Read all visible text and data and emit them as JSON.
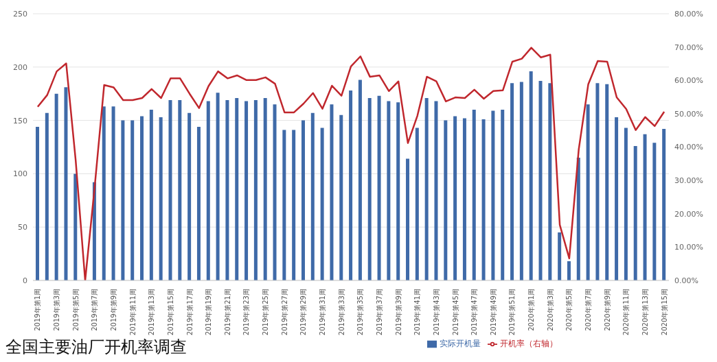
{
  "chart_data": {
    "type": "bar",
    "title": "全国主要油厂开机率调查",
    "categories": [
      "2019年第1周",
      null,
      "2019年第3周",
      null,
      "2019年第5周",
      null,
      "2019年第7周",
      null,
      "2019年第9周",
      null,
      "2019年第11周",
      null,
      "2019年第13周",
      null,
      "2019年第15周",
      null,
      "2019年第17周",
      null,
      "2019年第19周",
      null,
      "2019年第21周",
      null,
      "2019年第23周",
      null,
      "2019年第25周",
      null,
      "2019年第27周",
      null,
      "2019年第29周",
      null,
      "2019年第31周",
      null,
      "2019年第33周",
      null,
      "2019年第35周",
      null,
      "2019年第37周",
      null,
      "2019年第39周",
      null,
      "2019年第41周",
      null,
      "2019年第43周",
      null,
      "2019年第45周",
      null,
      "2019年第47周",
      null,
      "2019年第49周",
      null,
      "2019年第51周",
      null,
      "2020年第1周",
      null,
      "2020年第3周",
      null,
      "2020年第5周",
      null,
      "2020年第7周",
      null,
      "2020年第9周",
      null,
      "2020年第11周",
      null,
      "2020年第13周",
      null,
      "2020年第15周"
    ],
    "series": [
      {
        "name": "实际开机量",
        "color": "#3f6aa8",
        "values": [
          144,
          157,
          175,
          181,
          100,
          0,
          92,
          163,
          163,
          150,
          150,
          154,
          160,
          153,
          169,
          169,
          157,
          144,
          168,
          176,
          169,
          171,
          168,
          169,
          171,
          165,
          141,
          141,
          150,
          157,
          143,
          165,
          155,
          178,
          188,
          171,
          173,
          168,
          167,
          114,
          143,
          171,
          168,
          150,
          154,
          152,
          160,
          151,
          159,
          160,
          185,
          186,
          196,
          187,
          185,
          45,
          18,
          115,
          165,
          185,
          184,
          153,
          143,
          126,
          137,
          129,
          142
        ]
      },
      {
        "name": "开机率（右轴）",
        "type": "line",
        "axis": "y2",
        "color": "#c0272d",
        "values": [
          52.1,
          55.6,
          62.7,
          65.1,
          36,
          0,
          28,
          58.6,
          57.9,
          54.1,
          54.1,
          54.7,
          57.4,
          54.7,
          60.6,
          60.6,
          56,
          51.7,
          58.3,
          62.7,
          60.6,
          61.5,
          60.1,
          60.1,
          60.9,
          59,
          50.4,
          50.4,
          53,
          56.2,
          51.5,
          58.4,
          55.4,
          64.2,
          67.2,
          61.1,
          61.5,
          56.8,
          59.7,
          41.2,
          49.4,
          61.1,
          59.7,
          53.7,
          54.9,
          54.7,
          57.2,
          54.5,
          56.8,
          57,
          65.6,
          66.5,
          69.8,
          66.9,
          67.7,
          16.7,
          6.6,
          39.3,
          58.8,
          65.8,
          65.6,
          54.9,
          51.4,
          45.1,
          49,
          46.3,
          50.6
        ]
      }
    ],
    "ylim": [
      0,
      250
    ],
    "yticks": [
      0,
      50,
      100,
      150,
      200,
      250
    ],
    "y2lim": [
      0,
      80
    ],
    "y2ticks": [
      {
        "value": 0,
        "label": "0.00%"
      },
      {
        "value": 10,
        "label": "10.00%"
      },
      {
        "value": 20,
        "label": "20.00%"
      },
      {
        "value": 30,
        "label": "30.00%"
      },
      {
        "value": 40,
        "label": "40.00%"
      },
      {
        "value": 50,
        "label": "50.00%"
      },
      {
        "value": 60,
        "label": "60.00%"
      },
      {
        "value": 70,
        "label": "70.00%"
      },
      {
        "value": 80,
        "label": "80.00%"
      }
    ],
    "grid": "y",
    "legend": "bottom",
    "marker": "none",
    "line_style": "solid"
  }
}
